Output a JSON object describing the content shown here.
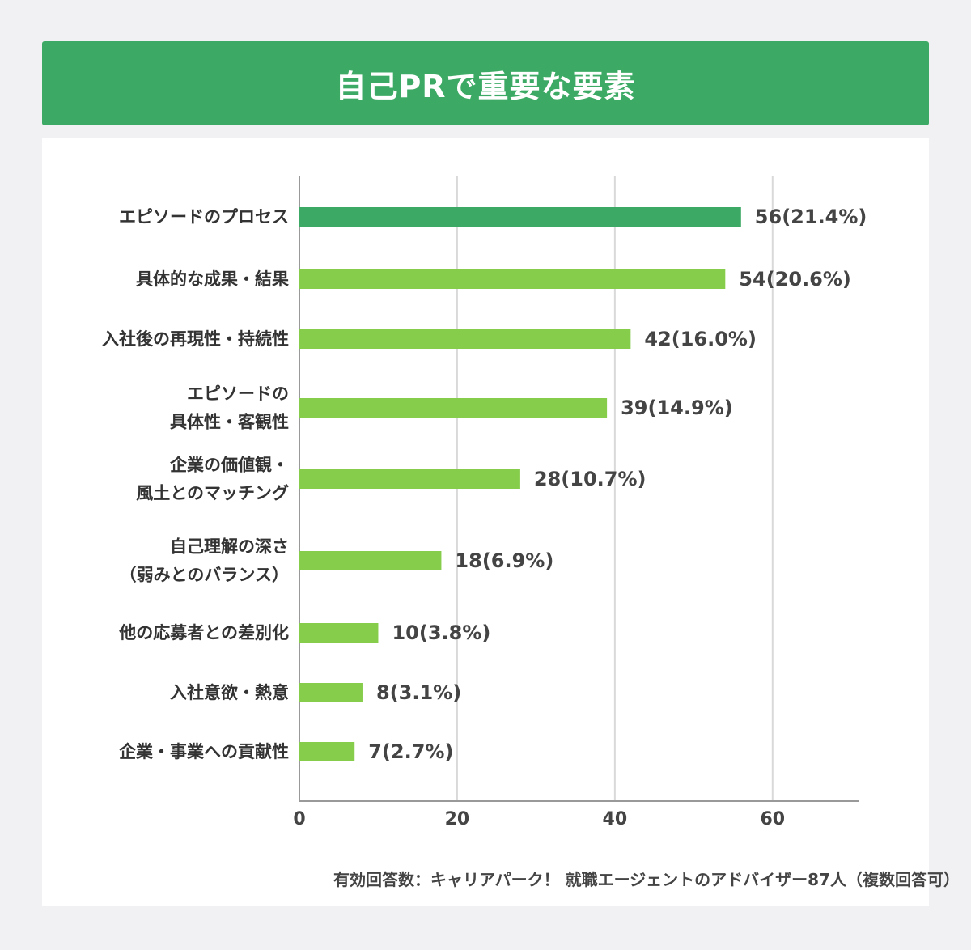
{
  "title": "自己PRで重要な要素",
  "colors": {
    "title_bg": "#3caa64",
    "highlight_bar": "#3caa64",
    "bar": "#86cd4b",
    "grid": "#d9d9d9",
    "axis": "#999999"
  },
  "chart_data": {
    "type": "bar",
    "orientation": "horizontal",
    "categories": [
      [
        "エピソードのプロセス"
      ],
      [
        "具体的な成果・結果"
      ],
      [
        "入社後の再現性・持続性"
      ],
      [
        "エピソードの",
        "具体性・客観性"
      ],
      [
        "企業の価値観・",
        "風土とのマッチング"
      ],
      [
        "自己理解の深さ",
        "（弱みとのバランス）"
      ],
      [
        "他の応募者との差別化"
      ],
      [
        "入社意欲・熱意"
      ],
      [
        "企業・事業への貢献性"
      ]
    ],
    "values": [
      56,
      54,
      42,
      39,
      28,
      18,
      10,
      8,
      7
    ],
    "value_labels": [
      "56(21.4%)",
      "54(20.6%)",
      "42(16.0%)",
      "39(14.9%)",
      "28(10.7%)",
      "18(6.9%)",
      "10(3.8%)",
      "8(3.1%)",
      "7(2.7%)"
    ],
    "xlim": [
      0,
      71
    ],
    "xticks": [
      0,
      20,
      40,
      60
    ],
    "grid": true,
    "highlight_index": 0
  },
  "footnote": "有効回答数：キャリアパーク！ 就職エージェントのアドバイザー87人（複数回答可）"
}
